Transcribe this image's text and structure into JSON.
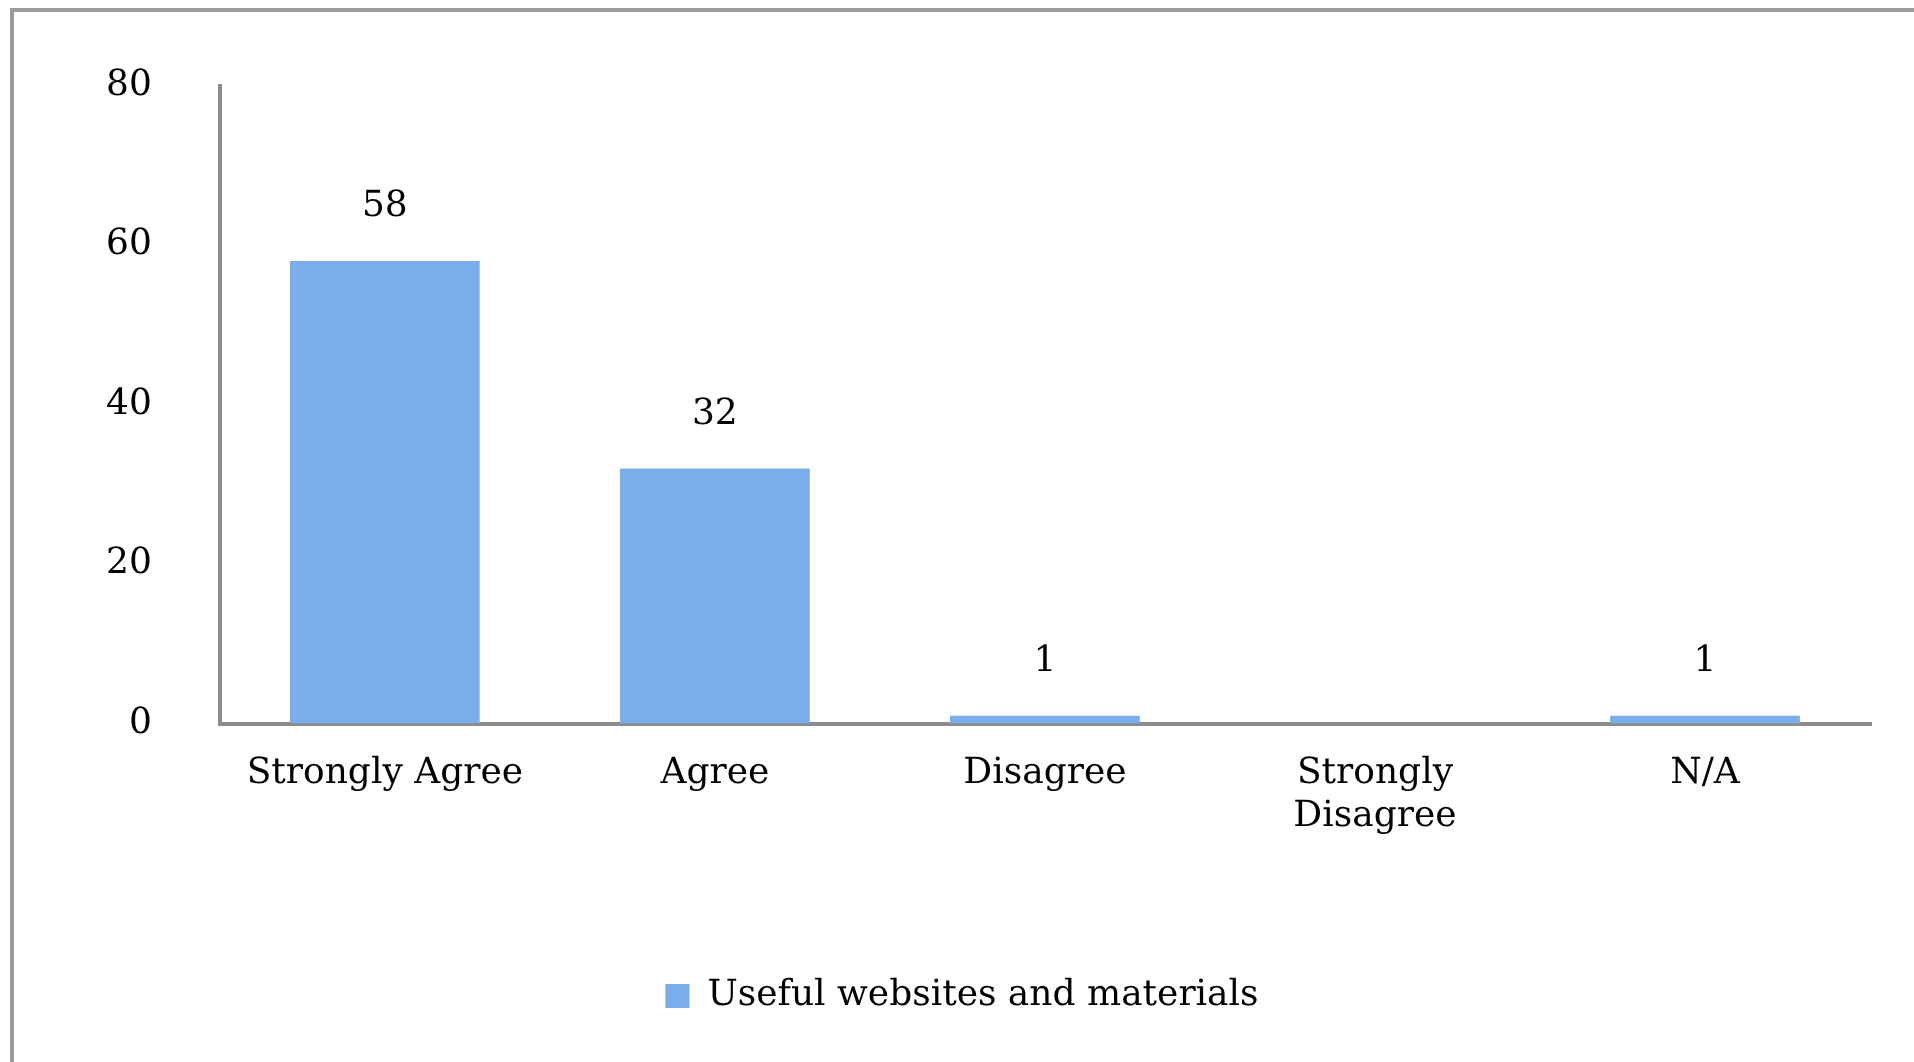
{
  "chart_data": {
    "type": "bar",
    "categories": [
      "Strongly Agree",
      "Agree",
      "Disagree",
      "Strongly Disagree",
      "N/A"
    ],
    "series": [
      {
        "name": "Useful websites and materials",
        "color": "#7aaeea",
        "values": [
          58,
          32,
          1,
          null,
          1
        ]
      }
    ],
    "ylim": [
      0,
      80
    ],
    "yticks": [
      0,
      20,
      40,
      60,
      80
    ],
    "data_labels": true,
    "legend": "bottom"
  }
}
